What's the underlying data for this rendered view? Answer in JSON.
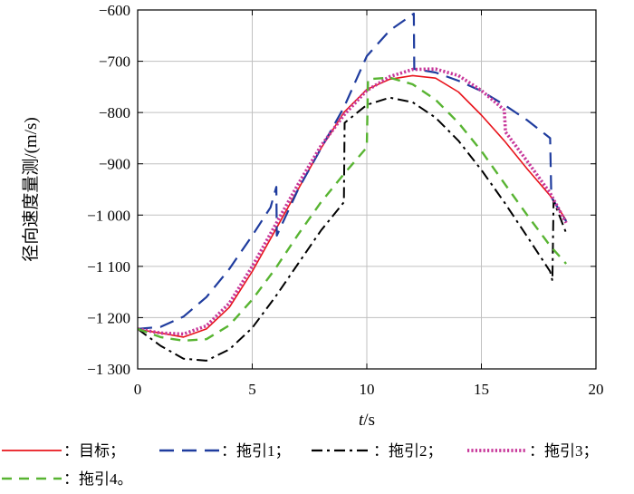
{
  "chart_data": {
    "type": "line",
    "title": "",
    "xlabel": "t/s",
    "xlabel_var": "t",
    "xlabel_unit": "/s",
    "ylabel": "径向速度量测/(m/s)",
    "xlim": [
      0,
      20
    ],
    "ylim": [
      -1300,
      -600
    ],
    "x_ticks": [
      0,
      5,
      10,
      15,
      20
    ],
    "x_tick_labels": [
      "0",
      "5",
      "10",
      "15",
      "20"
    ],
    "y_ticks": [
      -1300,
      -1200,
      -1100,
      -1000,
      -900,
      -800,
      -700,
      -600
    ],
    "y_tick_labels": [
      "−1 300",
      "−1 200",
      "−1 100",
      "−1 000",
      "−900",
      "−800",
      "−700",
      "−600"
    ],
    "grid": true,
    "legend_position": "bottom",
    "series": [
      {
        "name": "：目标；",
        "color": "#e8141c",
        "dash": "solid",
        "points": [
          [
            0,
            -1223
          ],
          [
            1,
            -1230
          ],
          [
            2,
            -1238
          ],
          [
            3,
            -1222
          ],
          [
            4,
            -1180
          ],
          [
            5,
            -1110
          ],
          [
            6,
            -1030
          ],
          [
            7,
            -950
          ],
          [
            8,
            -870
          ],
          [
            9,
            -800
          ],
          [
            10,
            -755
          ],
          [
            11,
            -735
          ],
          [
            12,
            -728
          ],
          [
            13,
            -733
          ],
          [
            14,
            -760
          ],
          [
            15,
            -805
          ],
          [
            16,
            -855
          ],
          [
            17,
            -910
          ],
          [
            18,
            -962
          ],
          [
            18.7,
            -1010
          ]
        ]
      },
      {
        "name": "：拖引1；",
        "color": "#1f3c9e",
        "dash": "long",
        "points": [
          [
            0,
            -1222
          ],
          [
            1,
            -1218
          ],
          [
            2,
            -1198
          ],
          [
            3,
            -1160
          ],
          [
            4,
            -1105
          ],
          [
            5,
            -1040
          ],
          [
            5.8,
            -985
          ],
          [
            6.05,
            -945
          ],
          [
            6.07,
            -1040
          ],
          [
            7,
            -950
          ],
          [
            8,
            -870
          ],
          [
            9,
            -790
          ],
          [
            10,
            -690
          ],
          [
            11,
            -640
          ],
          [
            11.8,
            -615
          ],
          [
            12.05,
            -607
          ],
          [
            12.07,
            -715
          ],
          [
            13,
            -722
          ],
          [
            14,
            -738
          ],
          [
            15,
            -758
          ],
          [
            16,
            -785
          ],
          [
            17,
            -815
          ],
          [
            18,
            -850
          ],
          [
            18.05,
            -965
          ],
          [
            18.7,
            -1012
          ]
        ]
      },
      {
        "name": "：拖引2；",
        "color": "#000000",
        "dash": "dashdot",
        "points": [
          [
            0,
            -1222
          ],
          [
            1,
            -1255
          ],
          [
            2,
            -1280
          ],
          [
            3,
            -1284
          ],
          [
            4,
            -1262
          ],
          [
            5,
            -1220
          ],
          [
            6,
            -1160
          ],
          [
            7,
            -1095
          ],
          [
            8,
            -1030
          ],
          [
            9,
            -975
          ],
          [
            9.03,
            -820
          ],
          [
            10,
            -785
          ],
          [
            11,
            -771
          ],
          [
            12,
            -780
          ],
          [
            13,
            -810
          ],
          [
            14,
            -855
          ],
          [
            15,
            -912
          ],
          [
            16,
            -975
          ],
          [
            17,
            -1042
          ],
          [
            18,
            -1110
          ],
          [
            18.1,
            -1128
          ],
          [
            18.15,
            -972
          ],
          [
            18.7,
            -1035
          ]
        ]
      },
      {
        "name": "：拖引3；",
        "color": "#c8379a",
        "dash": "dotted",
        "points": [
          [
            0,
            -1222
          ],
          [
            1,
            -1230
          ],
          [
            2,
            -1232
          ],
          [
            3,
            -1216
          ],
          [
            4,
            -1172
          ],
          [
            5,
            -1100
          ],
          [
            6,
            -1020
          ],
          [
            7,
            -940
          ],
          [
            8,
            -865
          ],
          [
            9,
            -805
          ],
          [
            10,
            -757
          ],
          [
            11,
            -730
          ],
          [
            12,
            -716
          ],
          [
            13,
            -715
          ],
          [
            14,
            -728
          ],
          [
            15,
            -757
          ],
          [
            16,
            -795
          ],
          [
            16.05,
            -838
          ],
          [
            17,
            -895
          ],
          [
            18,
            -957
          ],
          [
            18.7,
            -1015
          ]
        ]
      },
      {
        "name": "：拖引4。",
        "color": "#58b432",
        "dash": "dash",
        "points": [
          [
            0,
            -1222
          ],
          [
            1,
            -1238
          ],
          [
            2,
            -1245
          ],
          [
            3,
            -1242
          ],
          [
            4,
            -1215
          ],
          [
            5,
            -1165
          ],
          [
            6,
            -1105
          ],
          [
            7,
            -1038
          ],
          [
            8,
            -975
          ],
          [
            9,
            -920
          ],
          [
            10,
            -868
          ],
          [
            10.05,
            -735
          ],
          [
            11,
            -732
          ],
          [
            12,
            -745
          ],
          [
            13,
            -775
          ],
          [
            14,
            -820
          ],
          [
            15,
            -875
          ],
          [
            16,
            -938
          ],
          [
            17,
            -1000
          ],
          [
            18,
            -1060
          ],
          [
            18.7,
            -1095
          ]
        ]
      }
    ]
  }
}
